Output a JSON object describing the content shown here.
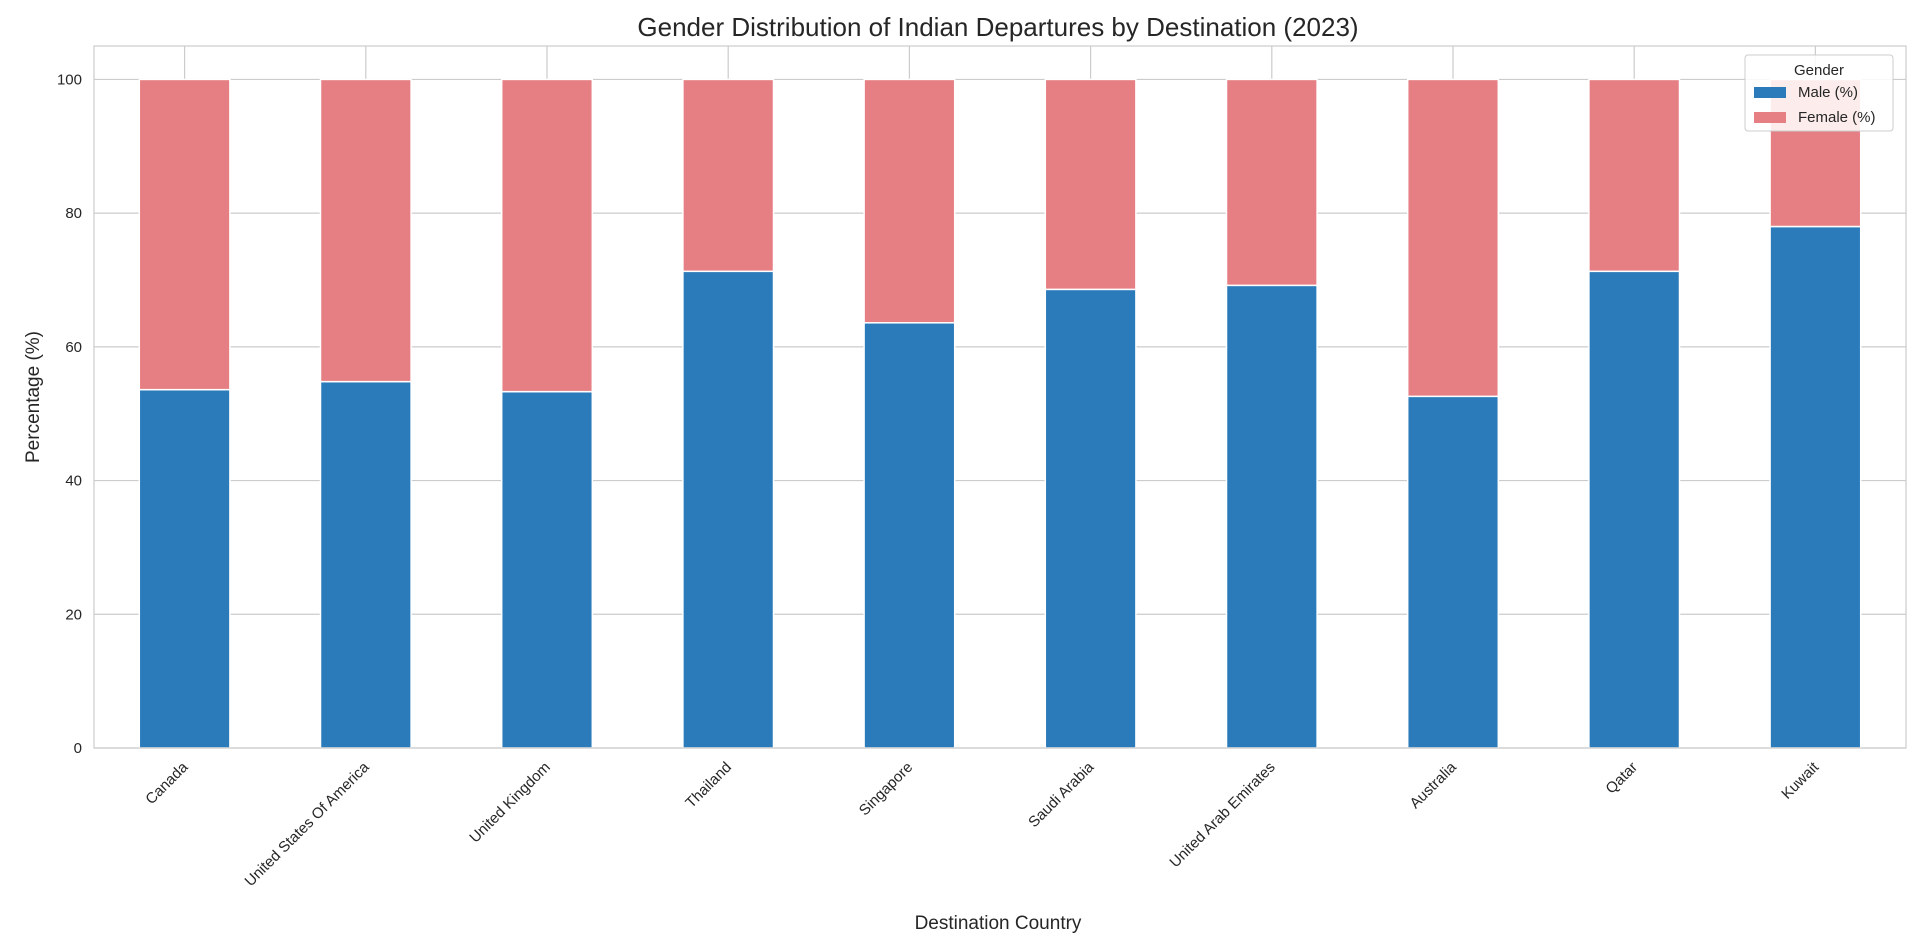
{
  "chart_data": {
    "type": "bar",
    "stacked": true,
    "title": "Gender Distribution of Indian Departures by Destination (2023)",
    "xlabel": "Destination Country",
    "ylabel": "Percentage (%)",
    "ylim": [
      0,
      105
    ],
    "yticks": [
      0,
      20,
      40,
      60,
      80,
      100
    ],
    "grid": true,
    "legend": {
      "title": "Gender",
      "placement": "top-right"
    },
    "categories": [
      "Canada",
      "United States Of America",
      "United Kingdom",
      "Thailand",
      "Singapore",
      "Saudi Arabia",
      "United Arab Emirates",
      "Australia",
      "Qatar",
      "Kuwait"
    ],
    "series": [
      {
        "name": "Male (%)",
        "color": "#2b7bba",
        "values": [
          53.6,
          54.8,
          53.3,
          71.3,
          63.6,
          68.6,
          69.2,
          52.6,
          71.3,
          78.0
        ]
      },
      {
        "name": "Female (%)",
        "color": "#e67f83",
        "values": [
          46.4,
          45.2,
          46.7,
          28.7,
          36.4,
          31.4,
          30.8,
          47.4,
          28.7,
          22.0
        ]
      }
    ]
  }
}
